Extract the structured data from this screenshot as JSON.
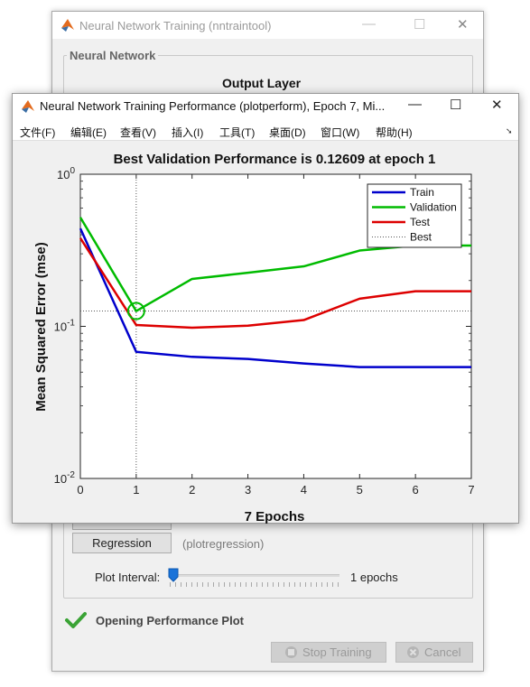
{
  "train_window": {
    "title": "Neural Network Training (nntraintool)",
    "group_label": "Neural Network",
    "output_layer_label": "Output Layer",
    "regression_button": "Regression",
    "regression_fn": "(plotregression)",
    "plot_interval_label": "Plot Interval:",
    "plot_interval_value": "1 epochs",
    "status_text": "Opening Performance Plot",
    "stop_training_button": "Stop Training",
    "cancel_button": "Cancel"
  },
  "perf_window": {
    "title": "Neural Network Training Performance (plotperform), Epoch 7, Mi...",
    "menu": [
      "文件(F)",
      "编辑(E)",
      "查看(V)",
      "插入(I)",
      "工具(T)",
      "桌面(D)",
      "窗口(W)",
      "帮助(H)"
    ]
  },
  "chart_data": {
    "type": "line",
    "title": "Best Validation Performance is 0.12609 at epoch 1",
    "xlabel": "7 Epochs",
    "ylabel": "Mean Squared Error  (mse)",
    "x": [
      0,
      1,
      2,
      3,
      4,
      5,
      6,
      7
    ],
    "xlim": [
      0,
      7
    ],
    "ylim": [
      0.01,
      1
    ],
    "yscale": "log",
    "x_ticks": [
      "0",
      "1",
      "2",
      "3",
      "4",
      "5",
      "6",
      "7"
    ],
    "y_ticks": [
      {
        "base": "10",
        "exp": "0",
        "value": 1
      },
      {
        "base": "10",
        "exp": "-1",
        "value": 0.1
      },
      {
        "base": "10",
        "exp": "-2",
        "value": 0.01
      }
    ],
    "series": [
      {
        "name": "Train",
        "color": "#0000cc",
        "values": [
          0.44,
          0.068,
          0.063,
          0.061,
          0.057,
          0.054,
          0.054,
          0.054
        ]
      },
      {
        "name": "Validation",
        "color": "#00bb00",
        "values": [
          0.52,
          0.126,
          0.205,
          0.225,
          0.248,
          0.315,
          0.34,
          0.34
        ]
      },
      {
        "name": "Test",
        "color": "#dd0000",
        "values": [
          0.38,
          0.102,
          0.098,
          0.101,
          0.11,
          0.152,
          0.17,
          0.17
        ]
      }
    ],
    "best": {
      "name": "Best",
      "epoch": 1,
      "value": 0.12609
    },
    "legend_position": "top-right"
  },
  "colors": {
    "status_check": "#3aa335",
    "slider_thumb": "#1a73d9"
  }
}
